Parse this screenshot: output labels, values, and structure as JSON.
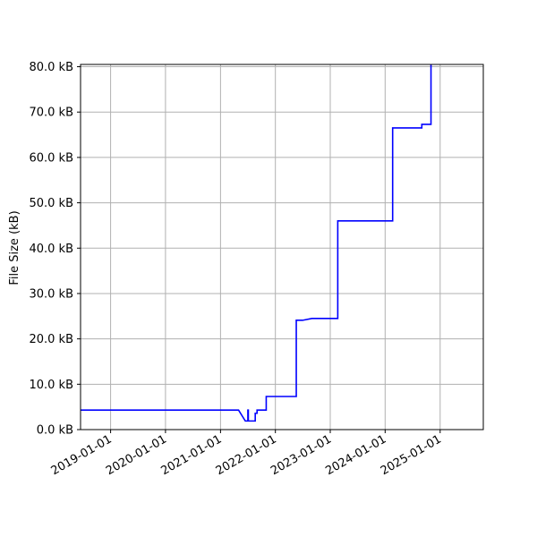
{
  "chart_data": {
    "type": "line",
    "title": "",
    "xlabel": "",
    "ylabel": "File Size (kB)",
    "x_type": "date",
    "xlim": [
      "2018-06-15",
      "2025-10-15"
    ],
    "ylim": [
      0,
      80.5
    ],
    "grid": true,
    "line_color": "#0000ff",
    "x_ticks": [
      {
        "value": "2019-01-01",
        "label": "2019-01-01"
      },
      {
        "value": "2020-01-01",
        "label": "2020-01-01"
      },
      {
        "value": "2021-01-01",
        "label": "2021-01-01"
      },
      {
        "value": "2022-01-01",
        "label": "2022-01-01"
      },
      {
        "value": "2023-01-01",
        "label": "2023-01-01"
      },
      {
        "value": "2024-01-01",
        "label": "2024-01-01"
      },
      {
        "value": "2025-01-01",
        "label": "2025-01-01"
      }
    ],
    "y_ticks": [
      {
        "value": 0,
        "label": "0.0 kB"
      },
      {
        "value": 10,
        "label": "10.0 kB"
      },
      {
        "value": 20,
        "label": "20.0 kB"
      },
      {
        "value": 30,
        "label": "30.0 kB"
      },
      {
        "value": 40,
        "label": "40.0 kB"
      },
      {
        "value": 50,
        "label": "50.0 kB"
      },
      {
        "value": 60,
        "label": "60.0 kB"
      },
      {
        "value": 70,
        "label": "70.0 kB"
      },
      {
        "value": 80,
        "label": "80.0 kB"
      }
    ],
    "series": [
      {
        "points": [
          {
            "x": "2018-06-15",
            "y": 4.3
          },
          {
            "x": "2021-05-01",
            "y": 4.3
          },
          {
            "x": "2021-06-15",
            "y": 1.9
          },
          {
            "x": "2021-07-02",
            "y": 1.9
          },
          {
            "x": "2021-07-02",
            "y": 4.3
          },
          {
            "x": "2021-07-05",
            "y": 4.3
          },
          {
            "x": "2021-07-05",
            "y": 1.9
          },
          {
            "x": "2021-08-20",
            "y": 1.9
          },
          {
            "x": "2021-08-20",
            "y": 3.6
          },
          {
            "x": "2021-09-01",
            "y": 3.6
          },
          {
            "x": "2021-09-01",
            "y": 4.3
          },
          {
            "x": "2021-11-01",
            "y": 4.3
          },
          {
            "x": "2021-11-01",
            "y": 7.3
          },
          {
            "x": "2022-05-20",
            "y": 7.3
          },
          {
            "x": "2022-05-20",
            "y": 24.1
          },
          {
            "x": "2022-07-01",
            "y": 24.1
          },
          {
            "x": "2022-09-01",
            "y": 24.5
          },
          {
            "x": "2023-02-20",
            "y": 24.5
          },
          {
            "x": "2023-02-20",
            "y": 46.0
          },
          {
            "x": "2024-02-20",
            "y": 46.0
          },
          {
            "x": "2024-02-20",
            "y": 66.5
          },
          {
            "x": "2024-09-01",
            "y": 66.5
          },
          {
            "x": "2024-09-01",
            "y": 67.3
          },
          {
            "x": "2024-11-01",
            "y": 67.3
          },
          {
            "x": "2024-11-01",
            "y": 80.5
          }
        ]
      }
    ]
  }
}
